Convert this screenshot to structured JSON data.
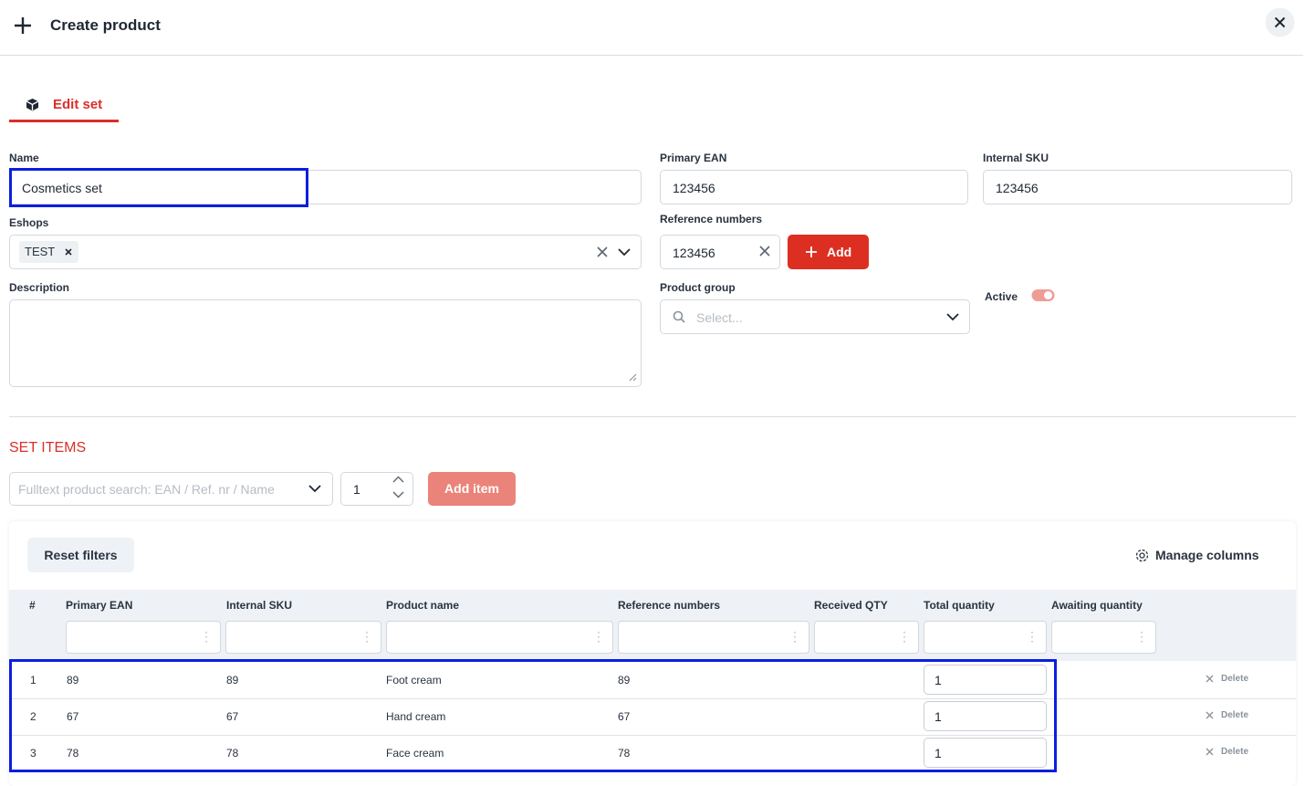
{
  "header": {
    "title": "Create product"
  },
  "tab": {
    "label": "Edit set"
  },
  "form": {
    "name": {
      "label": "Name",
      "value": "Cosmetics set"
    },
    "primary_ean": {
      "label": "Primary EAN",
      "value": "123456"
    },
    "internal_sku": {
      "label": "Internal SKU",
      "value": "123456"
    },
    "eshops": {
      "label": "Eshops",
      "tags": [
        "TEST"
      ]
    },
    "reference_numbers": {
      "label": "Reference numbers",
      "value": "123456",
      "button": "Add"
    },
    "description": {
      "label": "Description"
    },
    "product_group": {
      "label": "Product group",
      "placeholder": "Select..."
    },
    "active": {
      "label": "Active"
    }
  },
  "set_items": {
    "title": "SET ITEMS",
    "search_placeholder": "Fulltext product search: EAN / Ref. nr / Name",
    "quantity": "1",
    "add_button": "Add item"
  },
  "table": {
    "reset_button": "Reset filters",
    "manage_button": "Manage columns",
    "columns": [
      "#",
      "Primary EAN",
      "Internal SKU",
      "Product name",
      "Reference numbers",
      "Received QTY",
      "Total quantity",
      "Awaiting quantity"
    ],
    "delete_label": "Delete",
    "rows": [
      {
        "index": "1",
        "primary_ean": "89",
        "internal_sku": "89",
        "product_name": "Foot cream",
        "reference_numbers": "89",
        "total_quantity": "1"
      },
      {
        "index": "2",
        "primary_ean": "67",
        "internal_sku": "67",
        "product_name": "Hand cream",
        "reference_numbers": "67",
        "total_quantity": "1"
      },
      {
        "index": "3",
        "primary_ean": "78",
        "internal_sku": "78",
        "product_name": "Face cream",
        "reference_numbers": "78",
        "total_quantity": "1"
      }
    ]
  }
}
